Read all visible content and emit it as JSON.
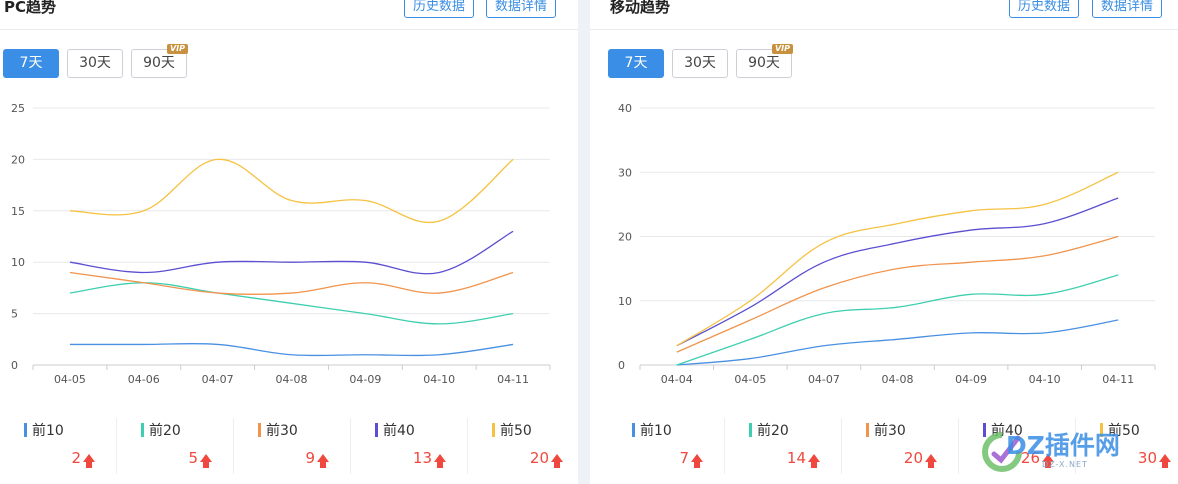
{
  "chart_data": [
    {
      "type": "line",
      "title": "PC趋势",
      "categories": [
        "04-05",
        "04-06",
        "04-07",
        "04-08",
        "04-09",
        "04-10",
        "04-11"
      ],
      "ylim": [
        0,
        25
      ],
      "yticks": [
        0,
        5,
        10,
        15,
        20,
        25
      ],
      "grid": true,
      "series": [
        {
          "name": "前10",
          "color": "#4a90e2",
          "values": [
            2,
            2,
            2,
            1,
            1,
            1,
            2
          ]
        },
        {
          "name": "前20",
          "color": "#3fcfb0",
          "values": [
            7,
            8,
            7,
            6,
            5,
            4,
            5
          ]
        },
        {
          "name": "前30",
          "color": "#f0944e",
          "values": [
            9,
            8,
            7,
            7,
            8,
            7,
            9
          ]
        },
        {
          "name": "前40",
          "color": "#5b4fd1",
          "values": [
            10,
            9,
            10,
            10,
            10,
            9,
            13
          ]
        },
        {
          "name": "前50",
          "color": "#f5c242",
          "values": [
            15,
            15,
            20,
            16,
            16,
            14,
            20
          ]
        }
      ]
    },
    {
      "type": "line",
      "title": "移动趋势",
      "categories": [
        "04-04",
        "04-05",
        "04-07",
        "04-08",
        "04-09",
        "04-10",
        "04-11"
      ],
      "ylim": [
        0,
        40
      ],
      "yticks": [
        0,
        10,
        20,
        30,
        40
      ],
      "grid": true,
      "series": [
        {
          "name": "前10",
          "color": "#4a90e2",
          "values": [
            0,
            1,
            3,
            4,
            5,
            5,
            7
          ]
        },
        {
          "name": "前20",
          "color": "#3fcfb0",
          "values": [
            0,
            4,
            8,
            9,
            11,
            11,
            14
          ]
        },
        {
          "name": "前30",
          "color": "#f0944e",
          "values": [
            2,
            7,
            12,
            15,
            16,
            17,
            20
          ]
        },
        {
          "name": "前40",
          "color": "#5b4fd1",
          "values": [
            3,
            9,
            16,
            19,
            21,
            22,
            26
          ]
        },
        {
          "name": "前50",
          "color": "#f5c242",
          "values": [
            3,
            10,
            19,
            22,
            24,
            25,
            30
          ]
        }
      ]
    }
  ],
  "panels": [
    {
      "title": "PC趋势",
      "buttons": {
        "history": "历史数据",
        "details": "数据详情"
      },
      "ranges": [
        "7天",
        "30天",
        "90天"
      ],
      "vip": "VIP",
      "legend": [
        {
          "label": "前10",
          "value": "2"
        },
        {
          "label": "前20",
          "value": "5"
        },
        {
          "label": "前30",
          "value": "9"
        },
        {
          "label": "前40",
          "value": "13"
        },
        {
          "label": "前50",
          "value": "20"
        }
      ]
    },
    {
      "title": "移动趋势",
      "buttons": {
        "history": "历史数据",
        "details": "数据详情"
      },
      "ranges": [
        "7天",
        "30天",
        "90天"
      ],
      "vip": "VIP",
      "legend": [
        {
          "label": "前10",
          "value": "7"
        },
        {
          "label": "前20",
          "value": "14"
        },
        {
          "label": "前30",
          "value": "20"
        },
        {
          "label": "前40",
          "value": "26"
        },
        {
          "label": "前50",
          "value": "30"
        }
      ]
    }
  ],
  "watermark": {
    "text": "DZ插件网",
    "sub": "DZ-X.NET"
  },
  "colors": {
    "accent": "#3a8ee6",
    "up": "#f0483e"
  }
}
